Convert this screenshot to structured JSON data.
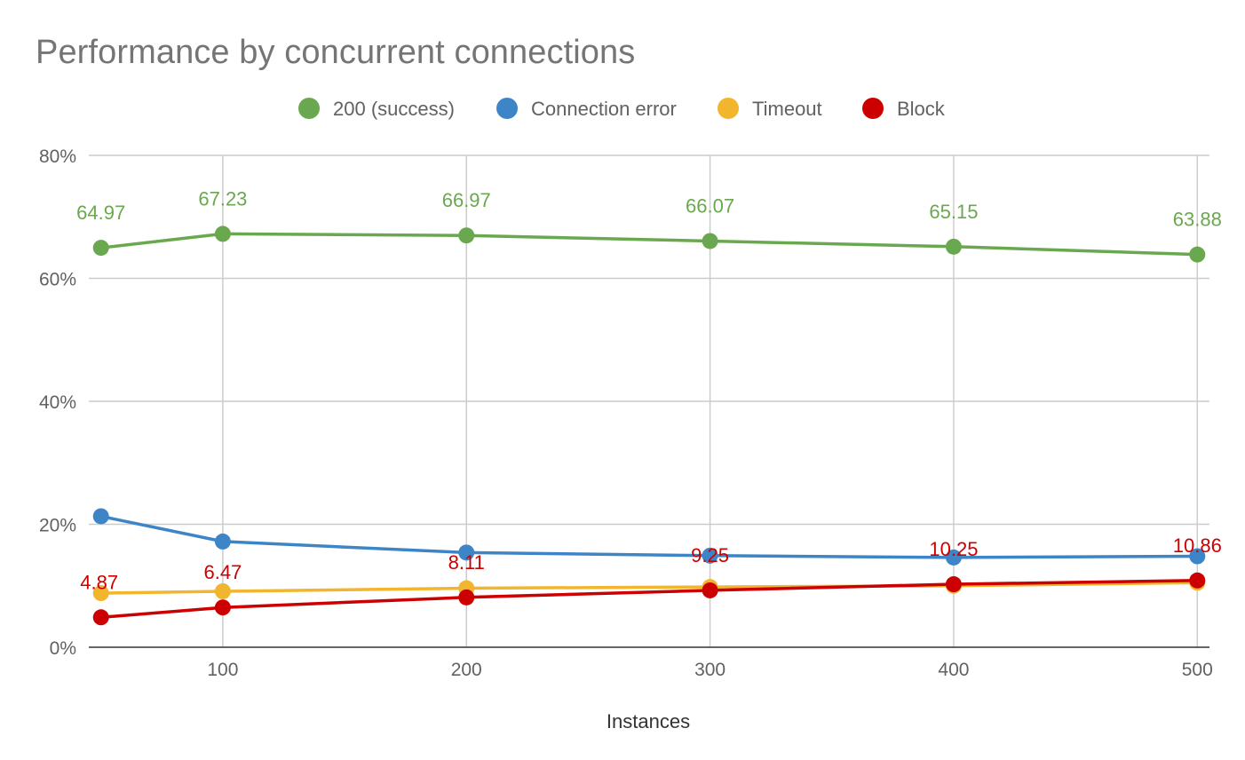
{
  "chart_data": {
    "type": "line",
    "title": "Performance by concurrent connections",
    "xlabel": "Instances",
    "ylabel": "",
    "x": [
      50,
      100,
      200,
      300,
      400,
      500
    ],
    "xlim": [
      45,
      505
    ],
    "ylim": [
      0,
      80
    ],
    "x_ticks": [
      100,
      200,
      300,
      400,
      500
    ],
    "y_ticks": [
      "0%",
      "20%",
      "40%",
      "60%",
      "80%"
    ],
    "y_tick_values": [
      0,
      20,
      40,
      60,
      80
    ],
    "grid": true,
    "legend_position": "top",
    "series": [
      {
        "name": "200 (success)",
        "color": "#6aa84f",
        "values": [
          64.97,
          67.23,
          66.97,
          66.07,
          65.15,
          63.88
        ],
        "labels": [
          "64.97",
          "67.23",
          "66.97",
          "66.07",
          "65.15",
          "63.88"
        ]
      },
      {
        "name": "Connection error",
        "color": "#3d85c6",
        "values": [
          21.3,
          17.2,
          15.4,
          14.9,
          14.6,
          14.8
        ],
        "labels": []
      },
      {
        "name": "Timeout",
        "color": "#f1b52e",
        "values": [
          8.8,
          9.1,
          9.6,
          9.8,
          10.0,
          10.5
        ],
        "labels": []
      },
      {
        "name": "Block",
        "color": "#cc0000",
        "values": [
          4.87,
          6.47,
          8.11,
          9.25,
          10.25,
          10.86
        ],
        "labels": [
          "4.87",
          "6.47",
          "8.11",
          "9.25",
          "10.25",
          "10.86"
        ]
      }
    ]
  }
}
